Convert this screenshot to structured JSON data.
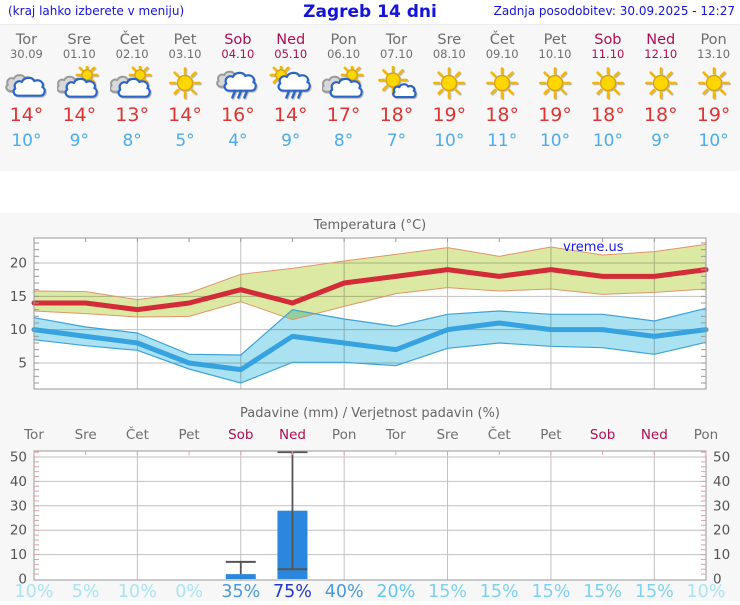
{
  "header": {
    "left_note": "(kraj lahko izberete v meniju)",
    "title": "Zagreb 14 dni",
    "updated": "Zadnja posodobitev: 30.09.2025 - 12:27"
  },
  "colors": {
    "header_text": "#1414dd",
    "weekday_label": "#6e6e6e",
    "weekend_label": "#b00d52",
    "temp_high": "#e03434",
    "temp_low": "#4cacec",
    "chart_title": "#666666",
    "axis_label": "#555555",
    "grid": "#c2c2c2",
    "axis_border": "#999999",
    "minor_tick_precip": "#dfa0a8",
    "max_line": "#d42b38",
    "max_band": "#dce9a3",
    "max_band_edge": "#e0956b",
    "min_line": "#36a2e0",
    "min_band": "#abe2f2",
    "min_band_edge": "#3da2db",
    "bar_fill": "#2b87dd",
    "whisker": "#555555",
    "watermark": "#1a1ae6",
    "panel_bg": "#f7f7f7",
    "plot_bg": "#ffffff"
  },
  "days": [
    {
      "name": "Tor",
      "date": "30.09",
      "weekend": false,
      "icon": "cloudy",
      "high": "14°",
      "low": "10°",
      "precip_prob": "10%",
      "prob_color": "#a9e3f6"
    },
    {
      "name": "Sre",
      "date": "01.10",
      "weekend": false,
      "icon": "partly",
      "high": "14°",
      "low": "9°",
      "precip_prob": "5%",
      "prob_color": "#a9e3f6"
    },
    {
      "name": "Čet",
      "date": "02.10",
      "weekend": false,
      "icon": "partly",
      "high": "13°",
      "low": "8°",
      "precip_prob": "10%",
      "prob_color": "#a9e3f6"
    },
    {
      "name": "Pet",
      "date": "03.10",
      "weekend": false,
      "icon": "sunny",
      "high": "14°",
      "low": "5°",
      "precip_prob": "0%",
      "prob_color": "#a9e3f6"
    },
    {
      "name": "Sob",
      "date": "04.10",
      "weekend": true,
      "icon": "rain",
      "high": "16°",
      "low": "4°",
      "precip_prob": "35%",
      "prob_color": "#4a9bdc"
    },
    {
      "name": "Ned",
      "date": "05.10",
      "weekend": true,
      "icon": "sun-rain",
      "high": "14°",
      "low": "9°",
      "precip_prob": "75%",
      "prob_color": "#2438c8"
    },
    {
      "name": "Pon",
      "date": "06.10",
      "weekend": false,
      "icon": "partly",
      "high": "17°",
      "low": "8°",
      "precip_prob": "40%",
      "prob_color": "#4a9bdc"
    },
    {
      "name": "Tor",
      "date": "07.10",
      "weekend": false,
      "icon": "mostly-sunny",
      "high": "18°",
      "low": "7°",
      "precip_prob": "20%",
      "prob_color": "#63c8ef"
    },
    {
      "name": "Sre",
      "date": "08.10",
      "weekend": false,
      "icon": "sunny",
      "high": "19°",
      "low": "10°",
      "precip_prob": "15%",
      "prob_color": "#7dd2f1"
    },
    {
      "name": "Čet",
      "date": "09.10",
      "weekend": false,
      "icon": "sunny",
      "high": "18°",
      "low": "11°",
      "precip_prob": "15%",
      "prob_color": "#7dd2f1"
    },
    {
      "name": "Pet",
      "date": "10.10",
      "weekend": false,
      "icon": "sunny",
      "high": "19°",
      "low": "10°",
      "precip_prob": "15%",
      "prob_color": "#7dd2f1"
    },
    {
      "name": "Sob",
      "date": "11.10",
      "weekend": true,
      "icon": "sunny",
      "high": "18°",
      "low": "10°",
      "precip_prob": "15%",
      "prob_color": "#7dd2f1"
    },
    {
      "name": "Ned",
      "date": "12.10",
      "weekend": true,
      "icon": "sunny",
      "high": "18°",
      "low": "9°",
      "precip_prob": "15%",
      "prob_color": "#7dd2f1"
    },
    {
      "name": "Pon",
      "date": "13.10",
      "weekend": false,
      "icon": "sunny",
      "high": "19°",
      "low": "10°",
      "precip_prob": "10%",
      "prob_color": "#a9e3f6"
    }
  ],
  "chart_data": [
    {
      "type": "area",
      "title": "Temperatura (°C)",
      "watermark": "vreme.us",
      "categories": [
        "Tor",
        "Sre",
        "Čet",
        "Pet",
        "Sob",
        "Ned",
        "Pon",
        "Tor",
        "Sre",
        "Čet",
        "Pet",
        "Sob",
        "Ned",
        "Pon"
      ],
      "yticks": [
        5,
        10,
        15,
        20
      ],
      "ylim": [
        1,
        23.75
      ],
      "grid": true,
      "series": [
        {
          "name": "max_temp",
          "values": [
            14,
            14,
            13,
            14,
            16,
            14,
            17,
            18,
            19,
            18,
            19,
            18,
            18,
            19
          ]
        },
        {
          "name": "max_band_upper",
          "values": [
            15.8,
            15.7,
            14.5,
            15.5,
            18.3,
            19.2,
            20.3,
            21.3,
            22.3,
            21.0,
            22.4,
            21.2,
            21.7,
            22.8
          ]
        },
        {
          "name": "max_band_lower",
          "values": [
            12.8,
            12.4,
            11.9,
            12.0,
            14.2,
            11.5,
            13.5,
            15.4,
            16.3,
            15.8,
            16.1,
            15.3,
            15.6,
            16.1
          ]
        },
        {
          "name": "min_temp",
          "values": [
            10,
            9,
            8,
            5,
            4,
            9,
            8,
            7,
            10,
            11,
            10,
            10,
            9,
            10
          ]
        },
        {
          "name": "min_band_upper",
          "values": [
            11.8,
            10.4,
            9.5,
            6.3,
            6.2,
            13.0,
            11.6,
            10.5,
            12.3,
            12.8,
            12.3,
            12.3,
            11.3,
            13.2
          ]
        },
        {
          "name": "min_band_lower",
          "values": [
            8.5,
            7.6,
            6.9,
            4.1,
            2.0,
            5.1,
            5.1,
            4.6,
            7.2,
            8.0,
            7.5,
            7.3,
            6.3,
            8.1
          ]
        }
      ]
    },
    {
      "type": "bar",
      "title": "Padavine (mm) / Verjetnost padavin (%)",
      "categories": [
        "Tor",
        "Sre",
        "Čet",
        "Pet",
        "Sob",
        "Ned",
        "Pon",
        "Tor",
        "Sre",
        "Čet",
        "Pet",
        "Sob",
        "Ned",
        "Pon"
      ],
      "values": [
        0,
        0,
        0,
        0,
        2,
        28,
        0,
        0,
        0,
        0,
        0,
        0,
        0,
        0
      ],
      "whisker_top": [
        null,
        null,
        null,
        null,
        7,
        52,
        null,
        null,
        null,
        null,
        null,
        null,
        null,
        null
      ],
      "median": [
        null,
        null,
        null,
        null,
        null,
        4,
        null,
        null,
        null,
        null,
        null,
        null,
        null,
        null
      ],
      "probabilities": [
        "10%",
        "5%",
        "10%",
        "0%",
        "35%",
        "75%",
        "40%",
        "20%",
        "15%",
        "15%",
        "15%",
        "15%",
        "15%",
        "10%"
      ],
      "yticks": [
        0,
        10,
        20,
        30,
        40,
        50
      ],
      "ylim": [
        0,
        52
      ],
      "grid": true
    }
  ]
}
